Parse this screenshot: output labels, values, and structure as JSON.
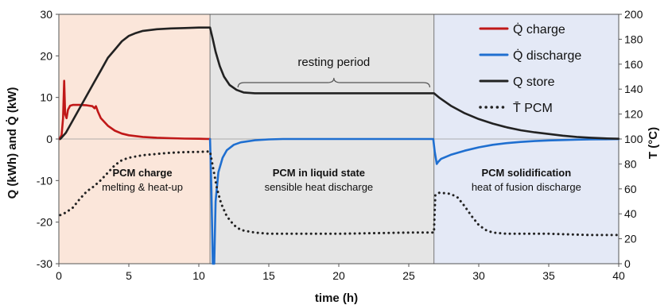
{
  "chart_data": {
    "type": "line",
    "xlabel": "time (h)",
    "ylabel_left": "Q  (kWh) and Q̇ (kW)",
    "ylabel_right": "T (°C)",
    "xlim": [
      0,
      40
    ],
    "ylim_left": [
      -30,
      30
    ],
    "ylim_right": [
      0,
      200
    ],
    "x_ticks": [
      "0",
      "5",
      "10",
      "15",
      "20",
      "25",
      "30",
      "35",
      "40"
    ],
    "y_left_ticks": [
      "30",
      "20",
      "10",
      "0",
      "-10",
      "-20",
      "-30"
    ],
    "y_right_ticks": [
      "200",
      "180",
      "160",
      "140",
      "120",
      "100",
      "80",
      "60",
      "40",
      "20",
      "0"
    ],
    "legend_position": "top-right",
    "regions": [
      {
        "x_start": 0,
        "x_end": 10.8,
        "color": "#fbe6da",
        "title": "PCM charge",
        "subtitle": "melting & heat-up"
      },
      {
        "x_start": 10.8,
        "x_end": 26.8,
        "color": "#e5e5e5",
        "title": "PCM in liquid state",
        "subtitle": "sensible heat discharge"
      },
      {
        "x_start": 26.8,
        "x_end": 40,
        "color": "#e4e9f6",
        "title": "PCM solidification",
        "subtitle": "heat of fusion discharge"
      }
    ],
    "annotation": {
      "text": "resting period",
      "x_start": 12.8,
      "x_end": 26.5
    },
    "series": [
      {
        "name": "Q̇ charge",
        "color": "#c01818",
        "style": "solid",
        "axis": "left",
        "points": [
          [
            0.05,
            0
          ],
          [
            0.2,
            1
          ],
          [
            0.3,
            5
          ],
          [
            0.38,
            14
          ],
          [
            0.45,
            6
          ],
          [
            0.55,
            5
          ],
          [
            0.65,
            7
          ],
          [
            0.8,
            8
          ],
          [
            1.0,
            8.2
          ],
          [
            1.5,
            8.2
          ],
          [
            2.0,
            8.1
          ],
          [
            2.4,
            7.9
          ],
          [
            2.55,
            7.4
          ],
          [
            2.65,
            7.9
          ],
          [
            2.8,
            6.5
          ],
          [
            3.0,
            5.0
          ],
          [
            3.5,
            3.2
          ],
          [
            4.0,
            2.0
          ],
          [
            4.5,
            1.3
          ],
          [
            5.0,
            0.9
          ],
          [
            6.0,
            0.5
          ],
          [
            7.0,
            0.3
          ],
          [
            8.0,
            0.2
          ],
          [
            9.0,
            0.1
          ],
          [
            10.0,
            0.05
          ],
          [
            10.8,
            0.0
          ]
        ]
      },
      {
        "name": "Q̇ discharge",
        "color": "#1f6fd0",
        "style": "solid",
        "axis": "left",
        "points": [
          [
            10.8,
            0
          ],
          [
            10.9,
            -12
          ],
          [
            11.0,
            -30
          ],
          [
            11.1,
            -30
          ],
          [
            11.2,
            -15
          ],
          [
            11.4,
            -8
          ],
          [
            11.7,
            -4.5
          ],
          [
            12.0,
            -2.7
          ],
          [
            12.5,
            -1.4
          ],
          [
            13.0,
            -0.8
          ],
          [
            14.0,
            -0.3
          ],
          [
            15.0,
            -0.1
          ],
          [
            16.0,
            0
          ],
          [
            26.75,
            0
          ],
          [
            26.85,
            -3
          ],
          [
            27.0,
            -6
          ],
          [
            27.1,
            -5.5
          ],
          [
            27.3,
            -4.8
          ],
          [
            28.0,
            -3.8
          ],
          [
            29.0,
            -2.8
          ],
          [
            30.0,
            -2.0
          ],
          [
            31.0,
            -1.4
          ],
          [
            32.0,
            -1.0
          ],
          [
            33.0,
            -0.7
          ],
          [
            34.0,
            -0.5
          ],
          [
            35.0,
            -0.35
          ],
          [
            36.0,
            -0.25
          ],
          [
            37.0,
            -0.15
          ],
          [
            38.0,
            -0.1
          ],
          [
            39.0,
            -0.05
          ],
          [
            40.0,
            -0.02
          ]
        ]
      },
      {
        "name": "Q store",
        "color": "#222222",
        "style": "solid",
        "axis": "left",
        "points": [
          [
            0.1,
            0
          ],
          [
            0.5,
            1.5
          ],
          [
            1.0,
            4.5
          ],
          [
            1.5,
            7.5
          ],
          [
            2.0,
            10.5
          ],
          [
            2.5,
            13.5
          ],
          [
            3.0,
            16.5
          ],
          [
            3.5,
            19.5
          ],
          [
            4.0,
            21.5
          ],
          [
            4.5,
            23.5
          ],
          [
            5.0,
            24.8
          ],
          [
            5.5,
            25.5
          ],
          [
            6.0,
            26.0
          ],
          [
            7.0,
            26.4
          ],
          [
            8.0,
            26.6
          ],
          [
            9.0,
            26.7
          ],
          [
            10.0,
            26.8
          ],
          [
            10.8,
            26.8
          ],
          [
            11.0,
            24
          ],
          [
            11.2,
            21
          ],
          [
            11.5,
            17.5
          ],
          [
            11.8,
            15
          ],
          [
            12.2,
            13
          ],
          [
            12.7,
            11.8
          ],
          [
            13.2,
            11.2
          ],
          [
            14.0,
            11.0
          ],
          [
            26.8,
            11.0
          ],
          [
            27.2,
            9.9
          ],
          [
            28.0,
            8.0
          ],
          [
            29.0,
            6.2
          ],
          [
            30.0,
            4.8
          ],
          [
            31.0,
            3.7
          ],
          [
            32.0,
            2.8
          ],
          [
            33.0,
            2.1
          ],
          [
            34.0,
            1.6
          ],
          [
            35.0,
            1.2
          ],
          [
            36.0,
            0.8
          ],
          [
            37.0,
            0.5
          ],
          [
            38.0,
            0.3
          ],
          [
            39.0,
            0.15
          ],
          [
            40.0,
            0.05
          ]
        ]
      },
      {
        "name": "T̄ PCM",
        "color": "#222222",
        "style": "dotted",
        "axis": "right",
        "points": [
          [
            0.1,
            39
          ],
          [
            0.5,
            41
          ],
          [
            1.0,
            45
          ],
          [
            1.5,
            52
          ],
          [
            2.0,
            58
          ],
          [
            2.5,
            62
          ],
          [
            3.0,
            67
          ],
          [
            3.5,
            73
          ],
          [
            4.0,
            79
          ],
          [
            4.5,
            83
          ],
          [
            5.0,
            85
          ],
          [
            6.0,
            87
          ],
          [
            7.0,
            88
          ],
          [
            8.0,
            89
          ],
          [
            9.0,
            89.5
          ],
          [
            10.0,
            89.7
          ],
          [
            10.8,
            90
          ],
          [
            11.0,
            78
          ],
          [
            11.3,
            60
          ],
          [
            11.6,
            48
          ],
          [
            12.0,
            38
          ],
          [
            12.5,
            31
          ],
          [
            13.0,
            27
          ],
          [
            14.0,
            25
          ],
          [
            15.0,
            24
          ],
          [
            20.0,
            24
          ],
          [
            25.0,
            25
          ],
          [
            26.8,
            25
          ],
          [
            26.85,
            42
          ],
          [
            26.9,
            55
          ],
          [
            27.2,
            57
          ],
          [
            28.0,
            56
          ],
          [
            28.5,
            53
          ],
          [
            29.0,
            46
          ],
          [
            29.5,
            38
          ],
          [
            30.0,
            31
          ],
          [
            30.5,
            27
          ],
          [
            31.0,
            25
          ],
          [
            32.0,
            24
          ],
          [
            35.0,
            24
          ],
          [
            38.0,
            23
          ],
          [
            40.0,
            23
          ]
        ]
      }
    ]
  }
}
